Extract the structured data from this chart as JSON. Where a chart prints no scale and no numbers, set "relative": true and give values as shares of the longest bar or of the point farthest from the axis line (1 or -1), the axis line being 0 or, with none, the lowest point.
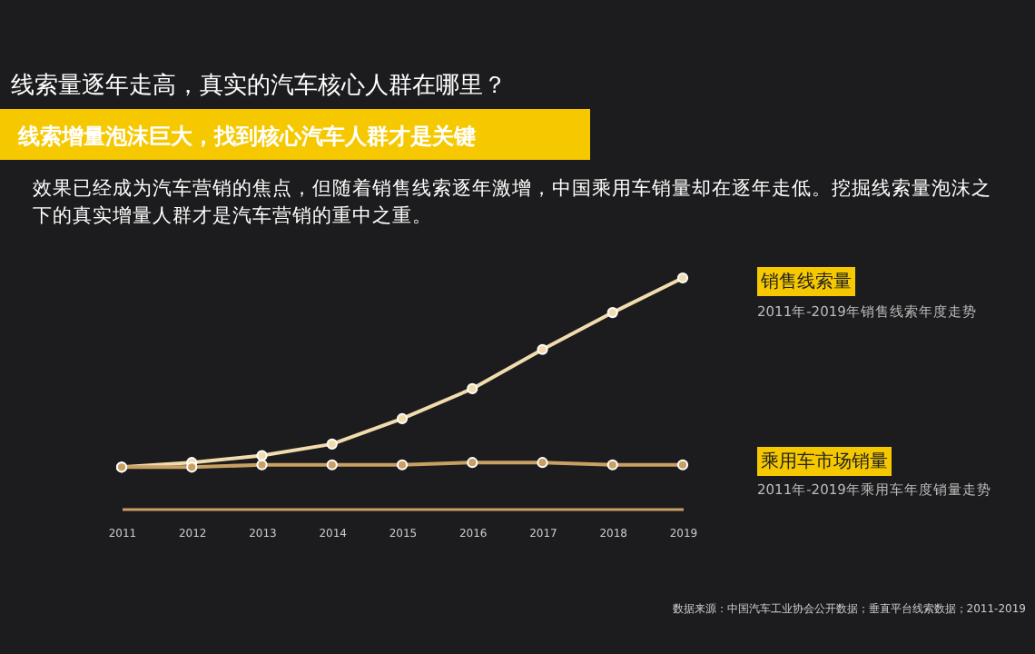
{
  "chart_data": {
    "type": "line",
    "title": "线索量逐年走高，真实的汽车核心人群在哪里？",
    "subtitle": "线索增量泡沫巨大，找到核心汽车人群才是关键",
    "categories": [
      "2011",
      "2012",
      "2013",
      "2014",
      "2015",
      "2016",
      "2017",
      "2018",
      "2019"
    ],
    "series": [
      {
        "name": "销售线索量",
        "color": "#f1dcae",
        "values": [
          0.18,
          0.2,
          0.23,
          0.28,
          0.39,
          0.52,
          0.69,
          0.85,
          1
        ]
      },
      {
        "name": "乘用车市场销量",
        "color": "#c9a063",
        "values": [
          0.18,
          0.18,
          0.19,
          0.19,
          0.19,
          0.2,
          0.2,
          0.19,
          0.19
        ]
      }
    ],
    "relative": true,
    "marker": "circle",
    "line_style": "solid",
    "grid": false,
    "legend": "right",
    "annotations": [
      "效果已经成为汽车营销的焦点，但随着销售线索逐年激增，中国乘用车销量却在逐年走低。挖掘线索量泡沫之下的真实增量人群才是汽车营销的重中之重。",
      "2011年-2019年销售线索年度走势",
      "2011年-2019年乘用车年度销量走势",
      "数据来源：中国汽车工业协会公开数据；垂直平台线索数据；2011-2019"
    ]
  }
}
